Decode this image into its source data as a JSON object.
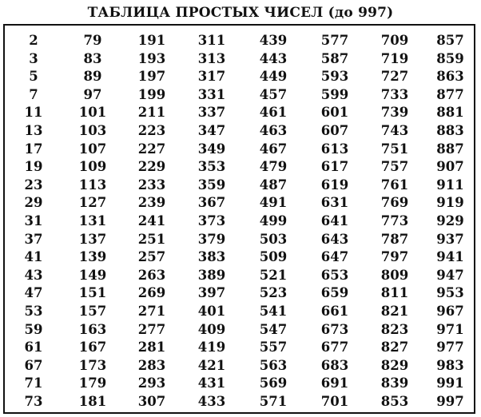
{
  "title": "ТАБЛИЦА ПРОСТЫХ ЧИСЕЛ (до 997)",
  "columns": [
    [
      "2",
      "3",
      "5",
      "7",
      "11",
      "13",
      "17",
      "19",
      "23",
      "29",
      "31",
      "37",
      "41",
      "43",
      "47",
      "53",
      "59",
      "61",
      "67",
      "71",
      "73"
    ],
    [
      "79",
      "83",
      "89",
      "97",
      "101",
      "103",
      "107",
      "109",
      "113",
      "127",
      "131",
      "137",
      "139",
      "149",
      "151",
      "157",
      "163",
      "167",
      "173",
      "179",
      "181"
    ],
    [
      "191",
      "193",
      "197",
      "199",
      "211",
      "223",
      "227",
      "229",
      "233",
      "239",
      "241",
      "251",
      "257",
      "263",
      "269",
      "271",
      "277",
      "281",
      "283",
      "293",
      "307"
    ],
    [
      "311",
      "313",
      "317",
      "331",
      "337",
      "347",
      "349",
      "353",
      "359",
      "367",
      "373",
      "379",
      "383",
      "389",
      "397",
      "401",
      "409",
      "419",
      "421",
      "431",
      "433"
    ],
    [
      "439",
      "443",
      "449",
      "457",
      "461",
      "463",
      "467",
      "479",
      "487",
      "491",
      "499",
      "503",
      "509",
      "521",
      "523",
      "541",
      "547",
      "557",
      "563",
      "569",
      "571"
    ],
    [
      "577",
      "587",
      "593",
      "599",
      "601",
      "607",
      "613",
      "617",
      "619",
      "631",
      "641",
      "643",
      "647",
      "653",
      "659",
      "661",
      "673",
      "677",
      "683",
      "691",
      "701"
    ],
    [
      "709",
      "719",
      "727",
      "733",
      "739",
      "743",
      "751",
      "757",
      "761",
      "769",
      "773",
      "787",
      "797",
      "809",
      "811",
      "821",
      "823",
      "827",
      "829",
      "839",
      "853"
    ],
    [
      "857",
      "859",
      "863",
      "877",
      "881",
      "883",
      "887",
      "907",
      "911",
      "919",
      "929",
      "937",
      "941",
      "947",
      "953",
      "967",
      "971",
      "977",
      "983",
      "991",
      "997"
    ]
  ]
}
